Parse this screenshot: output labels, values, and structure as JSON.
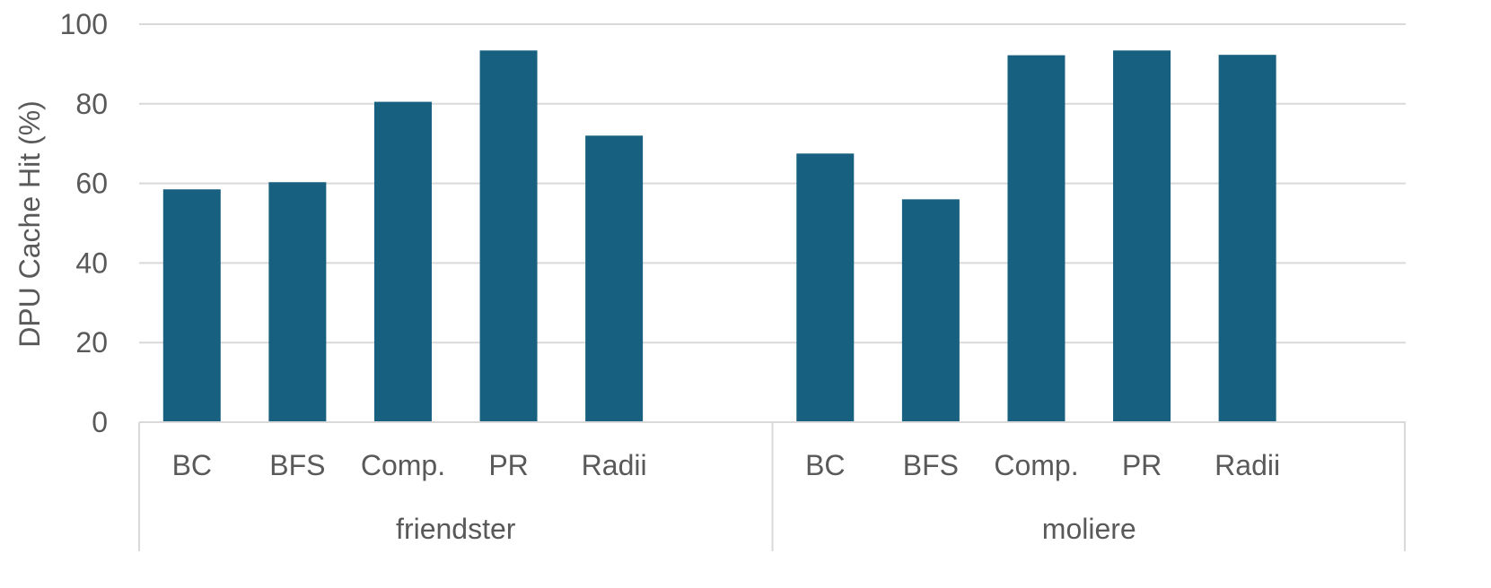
{
  "chart_data": {
    "type": "bar",
    "ylabel": "DPU  Cache Hit (%)",
    "ylim": [
      0,
      100
    ],
    "yticks": [
      0,
      20,
      40,
      60,
      80,
      100
    ],
    "grid": true,
    "bar_color": "#17607f",
    "groups": [
      {
        "name": "friendster",
        "categories": [
          "BC",
          "BFS",
          "Comp.",
          "PR",
          "Radii"
        ],
        "values": [
          58.5,
          60.3,
          80.5,
          93.4,
          72.0
        ]
      },
      {
        "name": "moliere",
        "categories": [
          "BC",
          "BFS",
          "Comp.",
          "PR",
          "Radii"
        ],
        "values": [
          67.5,
          56.0,
          92.2,
          93.4,
          92.3
        ]
      }
    ]
  }
}
